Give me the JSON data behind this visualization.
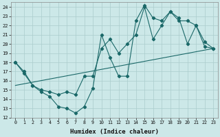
{
  "xlabel": "Humidex (Indice chaleur)",
  "ylabel": "",
  "xlim": [
    -0.5,
    23.5
  ],
  "ylim": [
    12,
    24.5
  ],
  "xticks": [
    0,
    1,
    2,
    3,
    4,
    5,
    6,
    7,
    8,
    9,
    10,
    11,
    12,
    13,
    14,
    15,
    16,
    17,
    18,
    19,
    20,
    21,
    22,
    23
  ],
  "yticks": [
    12,
    13,
    14,
    15,
    16,
    17,
    18,
    19,
    20,
    21,
    22,
    23,
    24
  ],
  "bg_color": "#cce8e8",
  "grid_color": "#aacccc",
  "line_color": "#1a6868",
  "line1_x": [
    0,
    1,
    2,
    3,
    4,
    5,
    6,
    7,
    8,
    9,
    10,
    11,
    12,
    13,
    14,
    15,
    16,
    17,
    18,
    19,
    20,
    21,
    22,
    23
  ],
  "line1_y": [
    18.0,
    17.0,
    15.5,
    14.8,
    14.3,
    13.2,
    13.0,
    12.5,
    13.2,
    15.2,
    21.0,
    18.5,
    16.5,
    16.5,
    22.5,
    24.2,
    22.8,
    22.5,
    23.5,
    22.8,
    20.0,
    22.0,
    19.7,
    19.5
  ],
  "line2_x": [
    0,
    1,
    2,
    3,
    4,
    5,
    6,
    7,
    8,
    9,
    10,
    11,
    12,
    13,
    14,
    15,
    16,
    17,
    18,
    19,
    20,
    21,
    22,
    23
  ],
  "line2_y": [
    18.0,
    16.8,
    15.5,
    15.0,
    14.8,
    14.5,
    14.8,
    14.5,
    16.5,
    16.5,
    19.5,
    20.5,
    19.0,
    20.0,
    21.0,
    24.0,
    20.5,
    22.0,
    23.5,
    22.5,
    22.5,
    22.0,
    20.2,
    19.5
  ],
  "line3_x": [
    0,
    23
  ],
  "line3_y": [
    15.5,
    19.5
  ]
}
